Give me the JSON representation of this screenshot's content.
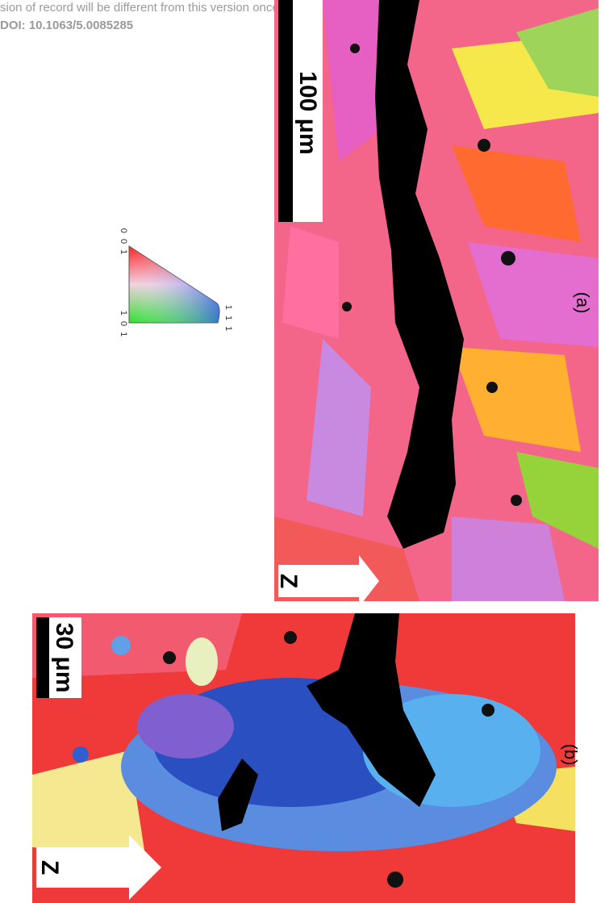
{
  "header": {
    "line1": "sion of record will be different from this version once it has been copyedited and typeset.",
    "doi": "DOI: 10.1063/5.0085285"
  },
  "panels": [
    {
      "label": "(a)",
      "scale_bar": "100 μm",
      "axis": "Z"
    },
    {
      "label": "(b)",
      "scale_bar": "30 μm",
      "axis": "Z"
    }
  ],
  "legend": {
    "top": "0 0 1",
    "bottom_left": "1 0 1",
    "bottom_right": "1 1 1"
  }
}
